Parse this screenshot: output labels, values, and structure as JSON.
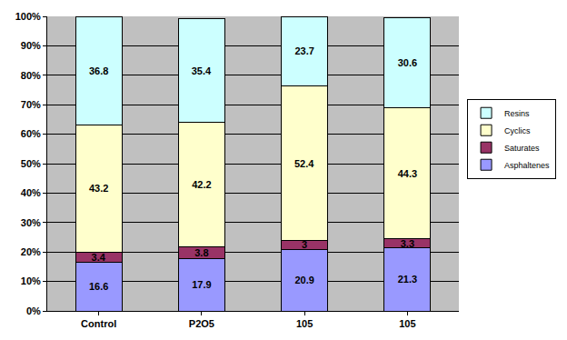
{
  "chart_data": {
    "type": "bar",
    "stacked": true,
    "data_labels": true,
    "grid": true,
    "legend": "right",
    "categories": [
      "Control",
      "P2O5",
      "105",
      "105"
    ],
    "series": [
      {
        "name": "Asphaltenes",
        "color": "#9999ff",
        "values": [
          16.6,
          17.9,
          20.9,
          21.3
        ]
      },
      {
        "name": "Saturates",
        "color": "#993366",
        "values": [
          3.4,
          3.8,
          3,
          3.3
        ]
      },
      {
        "name": "Cyclics",
        "color": "#ffffcc",
        "values": [
          43.2,
          42.2,
          52.4,
          44.3
        ]
      },
      {
        "name": "Resins",
        "color": "#ccffff",
        "values": [
          36.8,
          35.4,
          23.7,
          30.6
        ]
      }
    ],
    "ylim": [
      0,
      100
    ],
    "yticks": [
      {
        "value": 0,
        "label": "0%"
      },
      {
        "value": 10,
        "label": "10%"
      },
      {
        "value": 20,
        "label": "20%"
      },
      {
        "value": 30,
        "label": "30%"
      },
      {
        "value": 40,
        "label": "40%"
      },
      {
        "value": 50,
        "label": "50%"
      },
      {
        "value": 60,
        "label": "60%"
      },
      {
        "value": 70,
        "label": "70%"
      },
      {
        "value": 80,
        "label": "80%"
      },
      {
        "value": 90,
        "label": "90%"
      },
      {
        "value": 100,
        "label": "100%"
      }
    ]
  }
}
